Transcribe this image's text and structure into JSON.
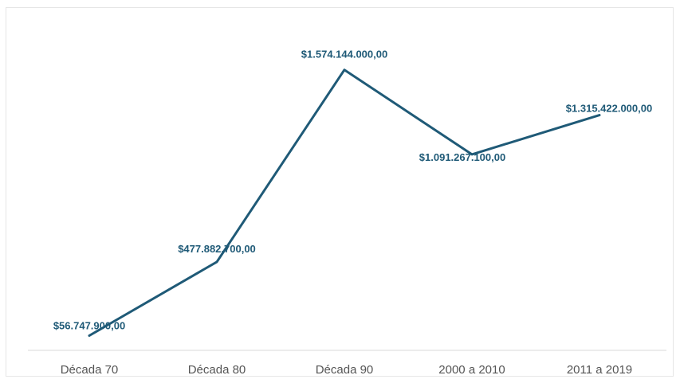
{
  "chart_data": {
    "type": "line",
    "categories": [
      "Década 70",
      "Década 80",
      "Década 90",
      "2000 a 2010",
      "2011 a 2019"
    ],
    "series": [
      {
        "values": [
          56747900,
          477882700,
          1574144000,
          1091267100,
          1315422000
        ],
        "data_labels": [
          "$56.747.900,00",
          "$477.882.700,00",
          "$1.574.144.000,00",
          "$1.091.267.100,00",
          "$1.315.422.000,00"
        ]
      }
    ],
    "ylim": [
      0,
      1600000000
    ],
    "grid": false,
    "legend": "none",
    "colors": {
      "line": "#1f5a77",
      "label": "#1f5a77",
      "tick": "#555555",
      "axis": "#d9d9d9"
    }
  }
}
